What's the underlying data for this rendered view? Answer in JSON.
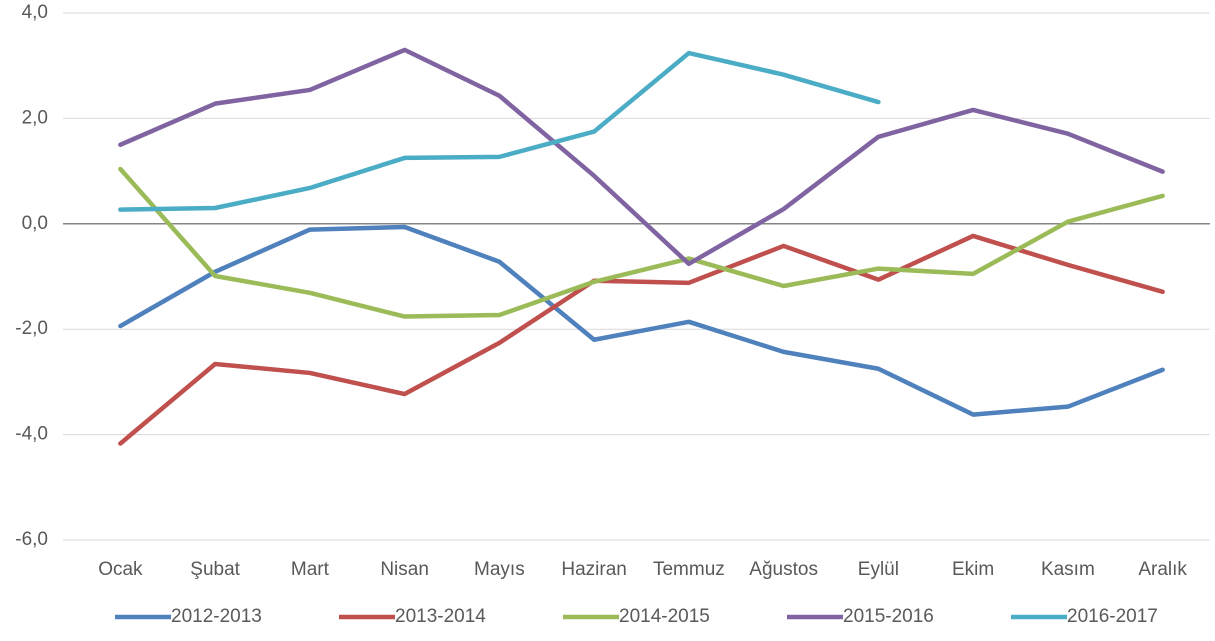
{
  "chart_data": {
    "type": "line",
    "categories": [
      "Ocak",
      "Şubat",
      "Mart",
      "Nisan",
      "Mayıs",
      "Haziran",
      "Temmuz",
      "Ağustos",
      "Eylül",
      "Ekim",
      "Kasım",
      "Aralık"
    ],
    "series": [
      {
        "name": "2012-2013",
        "color": "#4f81bd",
        "values": [
          -1.94,
          -0.91,
          -0.11,
          -0.06,
          -0.72,
          -2.2,
          -1.86,
          -2.43,
          -2.75,
          -3.62,
          -3.47,
          -2.77
        ]
      },
      {
        "name": "2013-2014",
        "color": "#c0504d",
        "values": [
          -4.17,
          -2.66,
          -2.83,
          -3.23,
          -2.26,
          -1.08,
          -1.12,
          -0.42,
          -1.06,
          -0.23,
          -0.78,
          -1.29
        ]
      },
      {
        "name": "2014-2015",
        "color": "#9bbb59",
        "values": [
          1.04,
          -0.99,
          -1.31,
          -1.76,
          -1.73,
          -1.1,
          -0.66,
          -1.18,
          -0.85,
          -0.95,
          0.04,
          0.53
        ]
      },
      {
        "name": "2015-2016",
        "color": "#8064a2",
        "values": [
          1.5,
          2.28,
          2.54,
          3.3,
          2.43,
          0.91,
          -0.76,
          0.28,
          1.65,
          2.16,
          1.71,
          0.99
        ]
      },
      {
        "name": "2016-2017",
        "color": "#4bacc6",
        "values": [
          0.27,
          0.3,
          0.68,
          1.25,
          1.27,
          1.75,
          3.24,
          2.83,
          2.31,
          null,
          null,
          null
        ]
      }
    ],
    "ylim": [
      -6,
      4
    ],
    "yticks": [
      {
        "value": -6,
        "label": "-6,0"
      },
      {
        "value": -4,
        "label": "-4,0"
      },
      {
        "value": -2,
        "label": "-2,0"
      },
      {
        "value": 0,
        "label": "0,0"
      },
      {
        "value": 2,
        "label": "2,0"
      },
      {
        "value": 4,
        "label": "4,0"
      }
    ],
    "grid": true,
    "legend": "bottom"
  }
}
